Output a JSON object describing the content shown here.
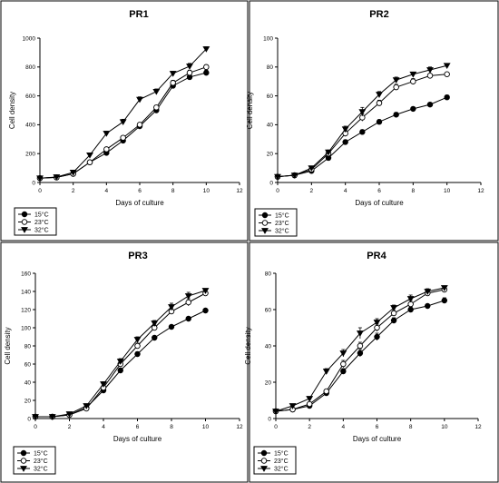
{
  "chart_data": [
    {
      "type": "line",
      "title": "PR1",
      "xlabel": "Days of culture",
      "ylabel": "Cell density",
      "xlim": [
        0,
        12
      ],
      "ylim": [
        0,
        1000
      ],
      "xticks": [
        "0",
        "2",
        "4",
        "6",
        "8",
        "10",
        "12"
      ],
      "yticks": [
        "0",
        "200",
        "400",
        "600",
        "800",
        "1000"
      ],
      "legend_position": "bottom-left-outside",
      "x": [
        0,
        1,
        2,
        3,
        4,
        5,
        6,
        7,
        8,
        9,
        10
      ],
      "series": [
        {
          "name": "15°C",
          "marker": "filled-circle",
          "values": [
            30,
            35,
            60,
            140,
            205,
            290,
            390,
            500,
            670,
            730,
            760
          ],
          "errors": [
            3,
            3,
            5,
            8,
            10,
            10,
            12,
            15,
            18,
            18,
            18
          ]
        },
        {
          "name": "23°C",
          "marker": "open-circle",
          "values": [
            30,
            35,
            60,
            140,
            230,
            310,
            400,
            520,
            690,
            760,
            800
          ],
          "errors": [
            3,
            3,
            5,
            8,
            10,
            12,
            12,
            15,
            18,
            18,
            15
          ]
        },
        {
          "name": "32°C",
          "marker": "filled-triangle-down",
          "values": [
            30,
            38,
            70,
            190,
            340,
            420,
            575,
            630,
            755,
            805,
            925
          ],
          "errors": [
            3,
            3,
            5,
            10,
            15,
            18,
            18,
            18,
            15,
            20,
            15
          ]
        }
      ]
    },
    {
      "type": "line",
      "title": "PR2",
      "xlabel": "Days of culture",
      "ylabel": "Cell density",
      "xlim": [
        0,
        12
      ],
      "ylim": [
        0,
        100
      ],
      "xticks": [
        "0",
        "2",
        "4",
        "6",
        "8",
        "10",
        "12"
      ],
      "yticks": [
        "0",
        "20",
        "40",
        "60",
        "80",
        "100"
      ],
      "legend_position": "bottom-left-outside",
      "x": [
        0,
        1,
        2,
        3,
        4,
        5,
        6,
        7,
        8,
        9,
        10
      ],
      "series": [
        {
          "name": "15°C",
          "marker": "filled-circle",
          "values": [
            4,
            5,
            8,
            17,
            28,
            35,
            42,
            47,
            51,
            54,
            59
          ],
          "errors": [
            0.5,
            0.5,
            1,
            1,
            1.5,
            1.5,
            1.5,
            1.5,
            1,
            1,
            1.5
          ]
        },
        {
          "name": "23°C",
          "marker": "open-circle",
          "values": [
            4,
            5,
            9,
            20,
            34,
            45,
            55,
            66,
            70,
            74,
            75
          ],
          "errors": [
            0.5,
            0.5,
            1,
            1.5,
            2,
            2.5,
            2,
            2,
            2,
            1.5,
            1
          ]
        },
        {
          "name": "32°C",
          "marker": "filled-triangle-down",
          "values": [
            4,
            5,
            10,
            21,
            37,
            49,
            61,
            71,
            75,
            78,
            81
          ],
          "errors": [
            0.5,
            0.5,
            1,
            1.5,
            2,
            3,
            2,
            2,
            1.5,
            2,
            1
          ]
        }
      ]
    },
    {
      "type": "line",
      "title": "PR3",
      "xlabel": "Days of culture",
      "ylabel": "Cell density",
      "xlim": [
        0,
        12
      ],
      "ylim": [
        0,
        160
      ],
      "xticks": [
        "0",
        "2",
        "4",
        "6",
        "8",
        "10",
        "12"
      ],
      "yticks": [
        "0",
        "20",
        "40",
        "60",
        "80",
        "100",
        "120",
        "140",
        "160"
      ],
      "legend_position": "bottom-left-outside",
      "x": [
        0,
        1,
        2,
        3,
        4,
        5,
        6,
        7,
        8,
        9,
        10
      ],
      "series": [
        {
          "name": "15°C",
          "marker": "filled-circle",
          "values": [
            2,
            2,
            4,
            12,
            31,
            53,
            71,
            89,
            101,
            110,
            119
          ],
          "errors": [
            0.5,
            0.5,
            1,
            1.5,
            2,
            2.5,
            2.5,
            2,
            2,
            2,
            2
          ]
        },
        {
          "name": "23°C",
          "marker": "open-circle",
          "values": [
            2,
            2,
            4,
            11,
            34,
            60,
            80,
            100,
            118,
            128,
            138
          ],
          "errors": [
            0.5,
            0.5,
            1,
            1.5,
            2.5,
            3,
            3,
            3,
            3,
            4,
            3
          ]
        },
        {
          "name": "32°C",
          "marker": "filled-triangle-down",
          "values": [
            2,
            2,
            5,
            14,
            38,
            63,
            87,
            105,
            123,
            135,
            141
          ],
          "errors": [
            0.5,
            0.5,
            1,
            2,
            2.5,
            3,
            3,
            3,
            4,
            4,
            2
          ]
        }
      ]
    },
    {
      "type": "line",
      "title": "PR4",
      "xlabel": "Days of culture",
      "ylabel": "Cell density",
      "xlim": [
        0,
        12
      ],
      "ylim": [
        0,
        80
      ],
      "xticks": [
        "0",
        "2",
        "4",
        "6",
        "8",
        "10",
        "12"
      ],
      "yticks": [
        "0",
        "20",
        "40",
        "60",
        "80"
      ],
      "legend_position": "bottom-left-outside",
      "x": [
        0,
        1,
        2,
        3,
        4,
        5,
        6,
        7,
        8,
        9,
        10
      ],
      "series": [
        {
          "name": "15°C",
          "marker": "filled-circle",
          "values": [
            4,
            5,
            7,
            14,
            26,
            36,
            45,
            54,
            60,
            62,
            65
          ],
          "errors": [
            0.5,
            0.5,
            1,
            1,
            1.5,
            2,
            2,
            1.5,
            1.5,
            1,
            1.5
          ]
        },
        {
          "name": "23°C",
          "marker": "open-circle",
          "values": [
            4,
            5,
            8,
            15,
            30,
            40,
            50,
            58,
            63,
            69,
            71
          ],
          "errors": [
            0.5,
            0.5,
            1,
            1,
            2,
            2,
            2,
            1.5,
            2,
            1.5,
            1
          ]
        },
        {
          "name": "32°C",
          "marker": "filled-triangle-down",
          "values": [
            4,
            7,
            11,
            26,
            36,
            47,
            53,
            61,
            66,
            70,
            72
          ],
          "errors": [
            0.5,
            0.5,
            1,
            1.5,
            2,
            3,
            2,
            1.5,
            2,
            1.5,
            1
          ]
        }
      ]
    }
  ]
}
